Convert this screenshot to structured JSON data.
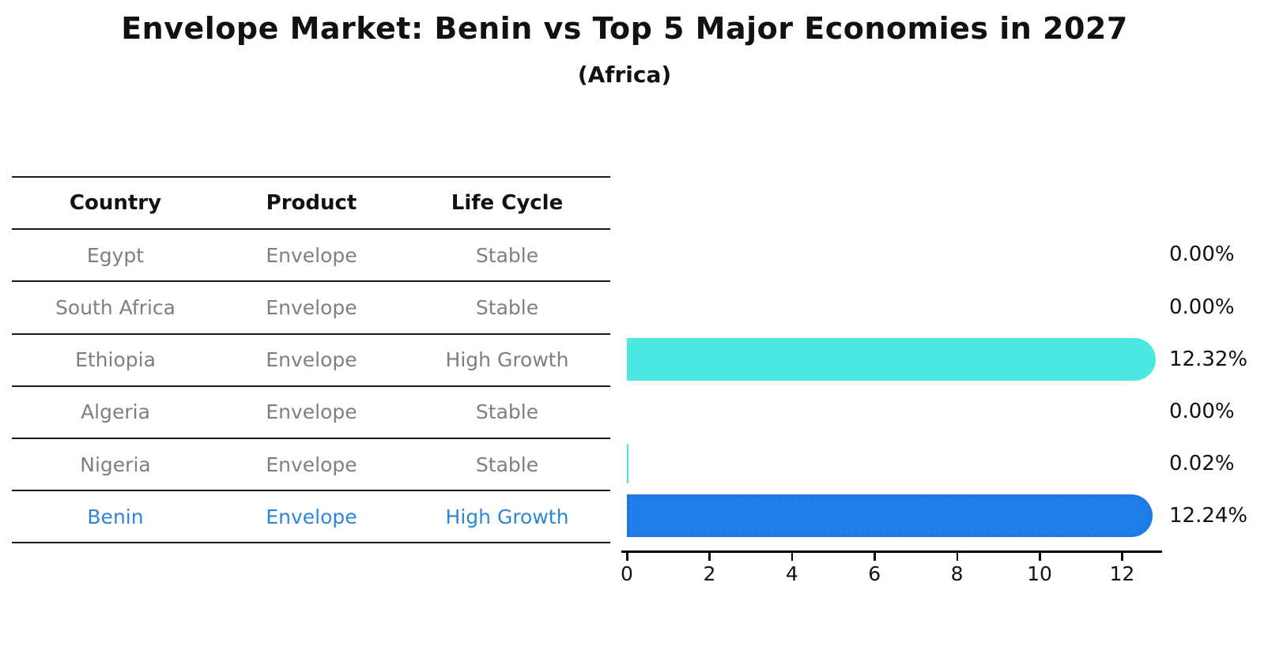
{
  "title": "Envelope Market: Benin vs Top 5 Major Economies in 2027",
  "subtitle": "(Africa)",
  "table": {
    "headers": [
      "Country",
      "Product",
      "Life Cycle"
    ],
    "rows": [
      {
        "country": "Egypt",
        "product": "Envelope",
        "life_cycle": "Stable",
        "highlight": false
      },
      {
        "country": "South Africa",
        "product": "Envelope",
        "life_cycle": "Stable",
        "highlight": false
      },
      {
        "country": "Ethiopia",
        "product": "Envelope",
        "life_cycle": "High Growth",
        "highlight": false
      },
      {
        "country": "Algeria",
        "product": "Envelope",
        "life_cycle": "Stable",
        "highlight": false
      },
      {
        "country": "Nigeria",
        "product": "Envelope",
        "life_cycle": "Stable",
        "highlight": false
      },
      {
        "country": "Benin",
        "product": "Envelope",
        "life_cycle": "High Growth",
        "highlight": true
      }
    ]
  },
  "chart_data": {
    "type": "bar",
    "orientation": "horizontal",
    "title": "Envelope Market: Benin vs Top 5 Major Economies in 2027",
    "subtitle": "(Africa)",
    "categories": [
      "Egypt",
      "South Africa",
      "Ethiopia",
      "Algeria",
      "Nigeria",
      "Benin"
    ],
    "values": [
      0.0,
      0.0,
      12.32,
      0.0,
      0.02,
      12.24
    ],
    "value_labels": [
      "0.00%",
      "0.00%",
      "12.32%",
      "0.00%",
      "0.02%",
      "12.24%"
    ],
    "xlabel": "",
    "ylabel": "",
    "xlim": [
      0,
      13
    ],
    "xticks": [
      0,
      2,
      4,
      6,
      8,
      10,
      12
    ],
    "grid": false,
    "legend": false,
    "highlight_category": "Benin",
    "bar_colors": [
      "#4AE8E1",
      "#4AE8E1",
      "#4AE8E1",
      "#4AE8E1",
      "#4AE8E1",
      "#1E7EE8"
    ]
  },
  "colors": {
    "default_bar": "#4AE8E1",
    "highlight_bar": "#1E7EE8",
    "highlight_border": "#2273DF",
    "highlight_text": "#2E86D9",
    "table_text": "#7f7f7f",
    "line": "#1a1a1a"
  }
}
